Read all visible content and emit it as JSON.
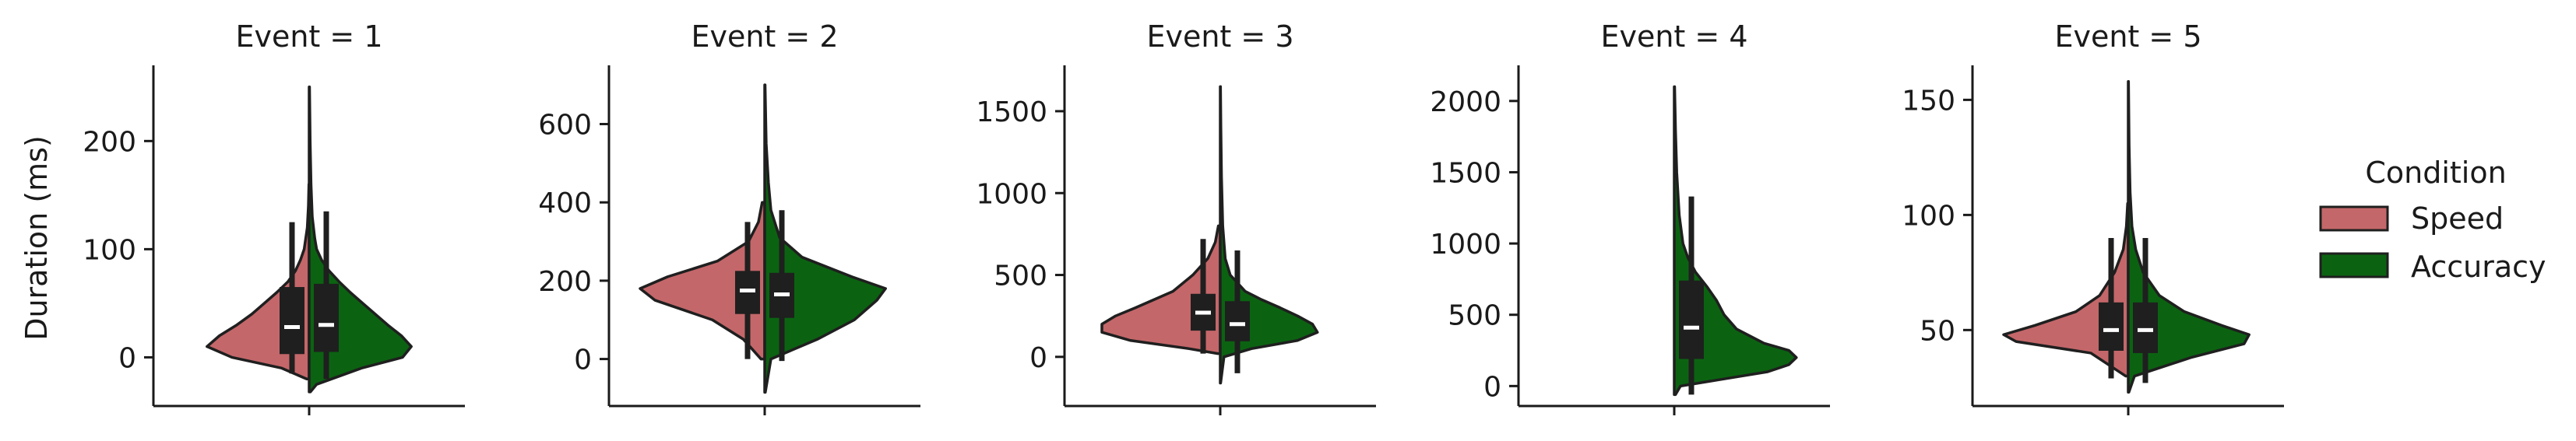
{
  "chart_data": {
    "type": "violin",
    "split": true,
    "hue_title": "Condition",
    "ylabel": "Duration (ms)",
    "colors": {
      "Speed": "#c4676a",
      "Accuracy": "#0b6311",
      "box": "#1f1f1f",
      "median": "#ffffff"
    },
    "hue_order": [
      "Speed",
      "Accuracy"
    ],
    "legend_position": "right",
    "panels": [
      {
        "title": "Event = 1",
        "ylim": [
          -45,
          270
        ],
        "yticks": [
          0,
          100,
          200
        ],
        "violins": {
          "Speed": {
            "profile": [
              [
                -20,
                0.02
              ],
              [
                -10,
                0.22
              ],
              [
                0,
                0.62
              ],
              [
                10,
                0.82
              ],
              [
                20,
                0.72
              ],
              [
                30,
                0.58
              ],
              [
                40,
                0.46
              ],
              [
                50,
                0.36
              ],
              [
                60,
                0.26
              ],
              [
                70,
                0.17
              ],
              [
                80,
                0.11
              ],
              [
                90,
                0.07
              ],
              [
                100,
                0.04
              ],
              [
                120,
                0.015
              ],
              [
                140,
                0.006
              ],
              [
                160,
                0.002
              ]
            ],
            "box": {
              "q1": 3,
              "median": 28,
              "q3": 65,
              "whisker_low": -15,
              "whisker_high": 125
            }
          },
          "Accuracy": {
            "profile": [
              [
                -32,
                0.01
              ],
              [
                -25,
                0.06
              ],
              [
                -10,
                0.42
              ],
              [
                0,
                0.75
              ],
              [
                10,
                0.82
              ],
              [
                20,
                0.74
              ],
              [
                30,
                0.63
              ],
              [
                40,
                0.53
              ],
              [
                50,
                0.43
              ],
              [
                60,
                0.33
              ],
              [
                70,
                0.24
              ],
              [
                80,
                0.16
              ],
              [
                90,
                0.1
              ],
              [
                100,
                0.06
              ],
              [
                110,
                0.045
              ],
              [
                130,
                0.025
              ],
              [
                160,
                0.015
              ],
              [
                200,
                0.008
              ],
              [
                250,
                0.003
              ]
            ],
            "box": {
              "q1": 5,
              "median": 30,
              "q3": 68,
              "whisker_low": -20,
              "whisker_high": 135
            }
          }
        }
      },
      {
        "title": "Event = 2",
        "ylim": [
          -120,
          750
        ],
        "yticks": [
          0,
          200,
          400,
          600
        ],
        "violins": {
          "Speed": {
            "profile": [
              [
                0,
                0.03
              ],
              [
                50,
                0.17
              ],
              [
                100,
                0.42
              ],
              [
                150,
                0.88
              ],
              [
                180,
                1.0
              ],
              [
                210,
                0.78
              ],
              [
                250,
                0.38
              ],
              [
                300,
                0.13
              ],
              [
                350,
                0.05
              ],
              [
                400,
                0.02
              ]
            ],
            "box": {
              "q1": 115,
              "median": 175,
              "q3": 225,
              "whisker_low": 0,
              "whisker_high": 350
            }
          },
          "Accuracy": {
            "profile": [
              [
                -85,
                0.005
              ],
              [
                0,
                0.05
              ],
              [
                50,
                0.42
              ],
              [
                100,
                0.72
              ],
              [
                150,
                0.9
              ],
              [
                180,
                0.97
              ],
              [
                210,
                0.7
              ],
              [
                260,
                0.3
              ],
              [
                310,
                0.12
              ],
              [
                380,
                0.05
              ],
              [
                450,
                0.03
              ],
              [
                550,
                0.012
              ],
              [
                700,
                0.003
              ]
            ],
            "box": {
              "q1": 105,
              "median": 165,
              "q3": 220,
              "whisker_low": -5,
              "whisker_high": 380
            }
          }
        }
      },
      {
        "title": "Event = 3",
        "ylim": [
          -300,
          1780
        ],
        "yticks": [
          0,
          500,
          1000,
          1500
        ],
        "violins": {
          "Speed": {
            "profile": [
              [
                20,
                0.02
              ],
              [
                50,
                0.25
              ],
              [
                100,
                0.72
              ],
              [
                150,
                0.95
              ],
              [
                200,
                0.95
              ],
              [
                250,
                0.84
              ],
              [
                300,
                0.68
              ],
              [
                350,
                0.53
              ],
              [
                400,
                0.38
              ],
              [
                500,
                0.22
              ],
              [
                600,
                0.1
              ],
              [
                700,
                0.04
              ],
              [
                800,
                0.015
              ]
            ],
            "box": {
              "q1": 160,
              "median": 270,
              "q3": 385,
              "whisker_low": 20,
              "whisker_high": 720
            }
          },
          "Accuracy": {
            "profile": [
              [
                -160,
                0.003
              ],
              [
                0,
                0.03
              ],
              [
                50,
                0.25
              ],
              [
                100,
                0.62
              ],
              [
                150,
                0.78
              ],
              [
                200,
                0.74
              ],
              [
                250,
                0.62
              ],
              [
                300,
                0.48
              ],
              [
                350,
                0.33
              ],
              [
                400,
                0.2
              ],
              [
                500,
                0.08
              ],
              [
                600,
                0.04
              ],
              [
                800,
                0.02
              ],
              [
                1100,
                0.01
              ],
              [
                1400,
                0.005
              ],
              [
                1650,
                0.002
              ]
            ],
            "box": {
              "q1": 95,
              "median": 200,
              "q3": 340,
              "whisker_low": -100,
              "whisker_high": 650
            }
          }
        }
      },
      {
        "title": "Event = 4",
        "ylim": [
          -140,
          2250
        ],
        "yticks": [
          0,
          500,
          1000,
          1500,
          2000
        ],
        "violins": {
          "Speed": {
            "profile": [],
            "box": null
          },
          "Accuracy": {
            "profile": [
              [
                -60,
                0.01
              ],
              [
                0,
                0.05
              ],
              [
                50,
                0.4
              ],
              [
                100,
                0.75
              ],
              [
                150,
                0.92
              ],
              [
                200,
                0.98
              ],
              [
                250,
                0.92
              ],
              [
                300,
                0.72
              ],
              [
                400,
                0.5
              ],
              [
                500,
                0.4
              ],
              [
                600,
                0.34
              ],
              [
                700,
                0.26
              ],
              [
                800,
                0.17
              ],
              [
                900,
                0.11
              ],
              [
                1000,
                0.07
              ],
              [
                1200,
                0.04
              ],
              [
                1500,
                0.02
              ],
              [
                1800,
                0.01
              ],
              [
                2100,
                0.003
              ]
            ],
            "box": {
              "q1": 190,
              "median": 410,
              "q3": 740,
              "whisker_low": -60,
              "whisker_high": 1330
            }
          }
        }
      },
      {
        "title": "Event = 5",
        "ylim": [
          17,
          165
        ],
        "yticks": [
          50,
          100,
          150
        ],
        "violins": {
          "Speed": {
            "profile": [
              [
                30,
                0.02
              ],
              [
                40,
                0.3
              ],
              [
                45,
                0.9
              ],
              [
                48,
                1.0
              ],
              [
                52,
                0.75
              ],
              [
                58,
                0.42
              ],
              [
                65,
                0.23
              ],
              [
                75,
                0.11
              ],
              [
                85,
                0.04
              ],
              [
                95,
                0.015
              ],
              [
                105,
                0.005
              ]
            ],
            "box": {
              "q1": 41,
              "median": 50,
              "q3": 62,
              "whisker_low": 29,
              "whisker_high": 90
            }
          },
          "Accuracy": {
            "profile": [
              [
                23,
                0.005
              ],
              [
                30,
                0.05
              ],
              [
                38,
                0.5
              ],
              [
                44,
                0.93
              ],
              [
                48,
                0.97
              ],
              [
                52,
                0.75
              ],
              [
                58,
                0.45
              ],
              [
                65,
                0.25
              ],
              [
                75,
                0.12
              ],
              [
                85,
                0.06
              ],
              [
                95,
                0.03
              ],
              [
                110,
                0.015
              ],
              [
                130,
                0.007
              ],
              [
                158,
                0.002
              ]
            ],
            "box": {
              "q1": 40,
              "median": 50,
              "q3": 62,
              "whisker_low": 27,
              "whisker_high": 90
            }
          }
        }
      }
    ]
  }
}
